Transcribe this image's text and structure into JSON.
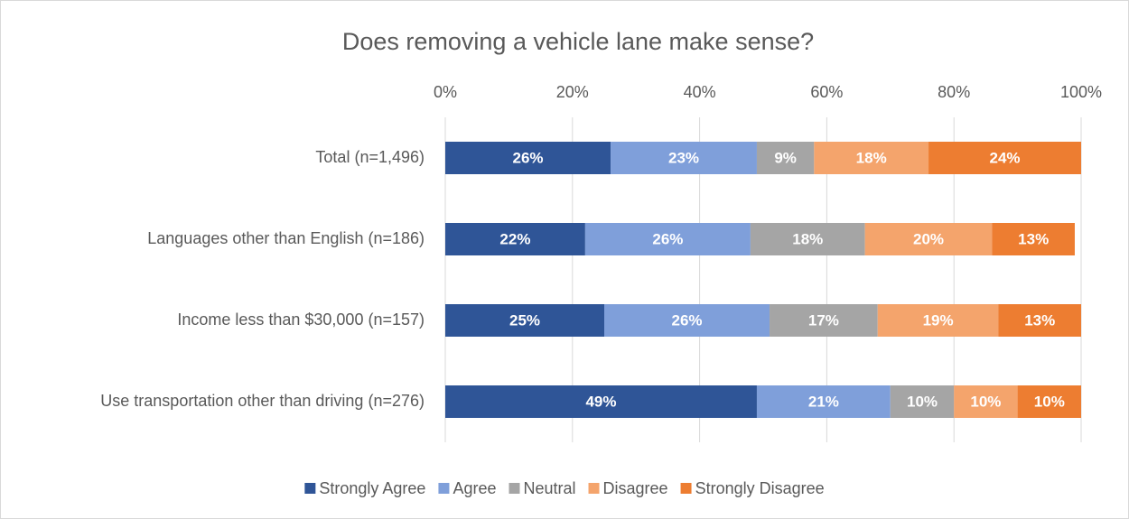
{
  "chart_data": {
    "type": "stacked_bar_horizontal",
    "title": "Does removing a vehicle lane make sense?",
    "categories": [
      "Total (n=1,496)",
      "Languages other than English (n=186)",
      "Income less than $30,000 (n=157)",
      "Use transportation other than driving (n=276)"
    ],
    "series": [
      {
        "name": "Strongly Agree",
        "color": "#2f5597",
        "values": [
          26,
          22,
          25,
          49
        ],
        "value_labels": [
          "26%",
          "22%",
          "25%",
          "49%"
        ]
      },
      {
        "name": "Agree",
        "color": "#7f9fda",
        "values": [
          23,
          26,
          26,
          21
        ],
        "value_labels": [
          "23%",
          "26%",
          "26%",
          "21%"
        ]
      },
      {
        "name": "Neutral",
        "color": "#a5a5a5",
        "values": [
          9,
          18,
          17,
          10
        ],
        "value_labels": [
          "9%",
          "18%",
          "17%",
          "10%"
        ]
      },
      {
        "name": "Disagree",
        "color": "#f4a46c",
        "values": [
          18,
          20,
          19,
          10
        ],
        "value_labels": [
          "18%",
          "20%",
          "19%",
          "10%"
        ]
      },
      {
        "name": "Strongly Disagree",
        "color": "#ed7d31",
        "values": [
          24,
          13,
          13,
          10
        ],
        "value_labels": [
          "24%",
          "13%",
          "13%",
          "10%"
        ]
      }
    ],
    "xlim": [
      0,
      100
    ],
    "xticks": [
      {
        "value": 0,
        "label": "0%"
      },
      {
        "value": 20,
        "label": "20%"
      },
      {
        "value": 40,
        "label": "40%"
      },
      {
        "value": 60,
        "label": "60%"
      },
      {
        "value": 80,
        "label": "80%"
      },
      {
        "value": 100,
        "label": "100%"
      }
    ],
    "grid": true,
    "legend": "bottom"
  }
}
